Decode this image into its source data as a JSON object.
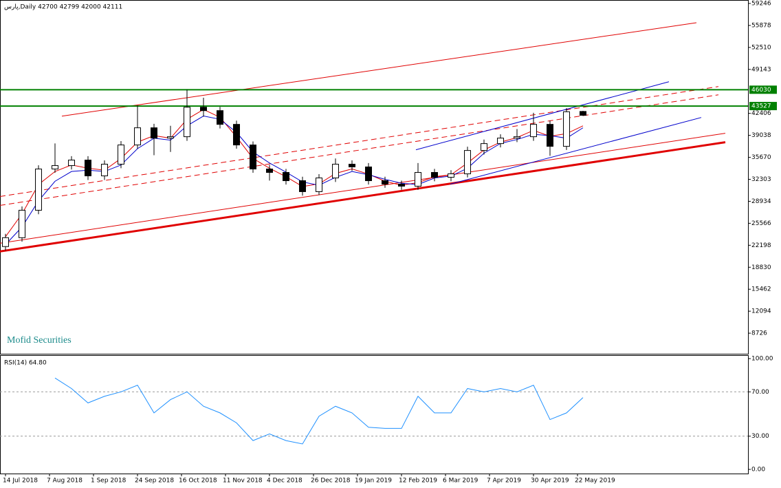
{
  "chart_data": [
    {
      "type": "candlestick",
      "title": "پارس,Daily  42700 42799 42000 42111",
      "watermark": "Mofid Securities",
      "x": [
        0,
        6,
        12,
        18,
        24,
        30,
        36,
        42,
        48,
        54,
        60,
        66,
        72,
        78,
        84,
        90,
        96,
        102,
        108,
        114,
        120,
        126,
        132,
        138,
        144,
        150,
        156,
        162,
        168,
        174,
        180,
        186,
        192,
        198,
        204,
        210
      ],
      "open": [
        22000,
        23356,
        27565,
        33881,
        34407,
        35250,
        32828,
        34620,
        37565,
        40196,
        38617,
        38830,
        43350,
        42827,
        40722,
        37565,
        33881,
        33355,
        32090,
        30410,
        32513,
        34620,
        34200,
        32090,
        31565,
        31250,
        33355,
        32620,
        33140,
        36720,
        37775,
        38617,
        38830,
        40722,
        37355,
        42700
      ],
      "high": [
        23950,
        28150,
        34450,
        37800,
        35850,
        35850,
        35200,
        38150,
        43600,
        40800,
        40500,
        46030,
        44800,
        43400,
        41300,
        38100,
        34500,
        33900,
        32700,
        33100,
        35500,
        35200,
        34800,
        32700,
        32100,
        34800,
        33900,
        33700,
        37300,
        38400,
        39200,
        40000,
        42500,
        41300,
        43200,
        42799
      ],
      "low": [
        21400,
        22750,
        26950,
        33300,
        33800,
        32200,
        32200,
        34000,
        37000,
        36000,
        36500,
        38200,
        41900,
        40100,
        37000,
        33300,
        32100,
        31500,
        29800,
        29900,
        31900,
        33600,
        31500,
        31000,
        30700,
        30700,
        32000,
        32000,
        32600,
        36100,
        37200,
        38000,
        38200,
        35900,
        36800,
        42000
      ],
      "close": [
        23356,
        27565,
        33881,
        34407,
        35250,
        32828,
        34620,
        37565,
        40196,
        38617,
        38830,
        43350,
        42827,
        40722,
        37565,
        33881,
        33355,
        32090,
        30410,
        32513,
        34620,
        34200,
        32090,
        31565,
        31250,
        33355,
        32620,
        33140,
        36720,
        37775,
        38617,
        38830,
        40722,
        37355,
        42650,
        42111
      ],
      "overlays": [
        {
          "color": "#e00000",
          "values": [
            23500,
            27000,
            31500,
            33500,
            34500,
            34000,
            33700,
            35500,
            38000,
            39000,
            38600,
            41500,
            43000,
            41800,
            38800,
            35500,
            34000,
            32700,
            31200,
            31600,
            33200,
            33900,
            33100,
            32000,
            31400,
            31800,
            32700,
            33000,
            34800,
            36800,
            38000,
            38700,
            39800,
            38900,
            39300,
            40500
          ]
        },
        {
          "color": "#0000cc",
          "values": [
            22300,
            25000,
            29000,
            32000,
            33500,
            33700,
            33500,
            34500,
            37000,
            38600,
            38300,
            40500,
            42000,
            41500,
            39500,
            36500,
            34800,
            33400,
            31900,
            31400,
            32600,
            33500,
            33000,
            32300,
            31700,
            31500,
            32500,
            32800,
            34000,
            36300,
            37800,
            38400,
            39200,
            39000,
            38600,
            40200
          ]
        }
      ],
      "trendlines": [
        {
          "from": [
            -2,
            21250
          ],
          "to": [
            261.75,
            37985
          ],
          "color": "#e00000",
          "style": "thick"
        },
        {
          "from": [
            -2,
            22512
          ],
          "to": [
            261.75,
            39354
          ],
          "color": "#e00000",
          "style": "solid"
        },
        {
          "from": [
            20.5,
            41985
          ],
          "to": [
            251.25,
            56299
          ],
          "color": "#e00000",
          "style": "solid"
        },
        {
          "from": [
            -2,
            29671
          ],
          "to": [
            259.25,
            46511
          ],
          "color": "#e00000",
          "style": "dashed"
        },
        {
          "from": [
            -2,
            28303
          ],
          "to": [
            259.25,
            45248
          ],
          "color": "#e00000",
          "style": "dashed"
        },
        {
          "from": [
            149.25,
            36828
          ],
          "to": [
            241.25,
            47248
          ],
          "color": "#0000cc",
          "style": "solid"
        },
        {
          "from": [
            161.75,
            31566
          ],
          "to": [
            253,
            41775
          ],
          "color": "#0000cc",
          "style": "solid"
        }
      ],
      "hlines": [
        46030,
        43527
      ],
      "hline_color": "#008000",
      "xlim": [
        -2,
        270
      ],
      "ylim": [
        5570,
        59670
      ],
      "yticks": [
        59246,
        55878,
        52510,
        49143,
        42406,
        39038,
        35670,
        32303,
        28934,
        25566,
        22198,
        18830,
        15462,
        12094,
        8726
      ],
      "xticks": [
        {
          "value": 0,
          "label": "14 Jul 2018"
        },
        {
          "value": 16,
          "label": "7 Aug 2018"
        },
        {
          "value": 32,
          "label": "1 Sep 2018"
        },
        {
          "value": 48,
          "label": "24 Sep 2018"
        },
        {
          "value": 64,
          "label": "16 Oct 2018"
        },
        {
          "value": 80,
          "label": "11 Nov 2018"
        },
        {
          "value": 96,
          "label": "4 Dec 2018"
        },
        {
          "value": 112,
          "label": "26 Dec 2018"
        },
        {
          "value": 128,
          "label": "19 Jan 2019"
        },
        {
          "value": 144,
          "label": "12 Feb 2019"
        },
        {
          "value": 160,
          "label": "6 Mar 2019"
        },
        {
          "value": 176,
          "label": "7 Apr 2019"
        },
        {
          "value": 192,
          "label": "30 Apr 2019"
        },
        {
          "value": 208,
          "label": "22 May 2019"
        }
      ]
    },
    {
      "type": "line",
      "title": "RSI(14) 64.80",
      "x": [
        0,
        6,
        12,
        18,
        24,
        30,
        36,
        42,
        48,
        54,
        60,
        66,
        72,
        78,
        84,
        90,
        96,
        102,
        108,
        114,
        120,
        126,
        132,
        138,
        144,
        150,
        156,
        162,
        168,
        174,
        180,
        186,
        192,
        198,
        204,
        210
      ],
      "values": [
        null,
        null,
        null,
        82.5,
        73,
        60,
        66,
        70,
        76,
        51,
        63,
        70,
        57,
        51,
        42,
        26,
        32,
        26,
        23,
        48,
        57,
        51,
        38,
        37,
        37,
        66,
        51,
        51,
        73,
        70,
        73,
        70,
        76,
        45,
        51,
        64.8
      ],
      "color": "#1e90ff",
      "levels": [
        70,
        30
      ],
      "xlim": [
        -2,
        270
      ],
      "ylim": [
        -3.75,
        102.5
      ],
      "yticks": [
        {
          "value": 100,
          "label": "100.00"
        },
        {
          "value": 70,
          "label": "70.00"
        },
        {
          "value": 30,
          "label": "30.00"
        },
        {
          "value": 0,
          "label": "0.00"
        }
      ]
    }
  ]
}
